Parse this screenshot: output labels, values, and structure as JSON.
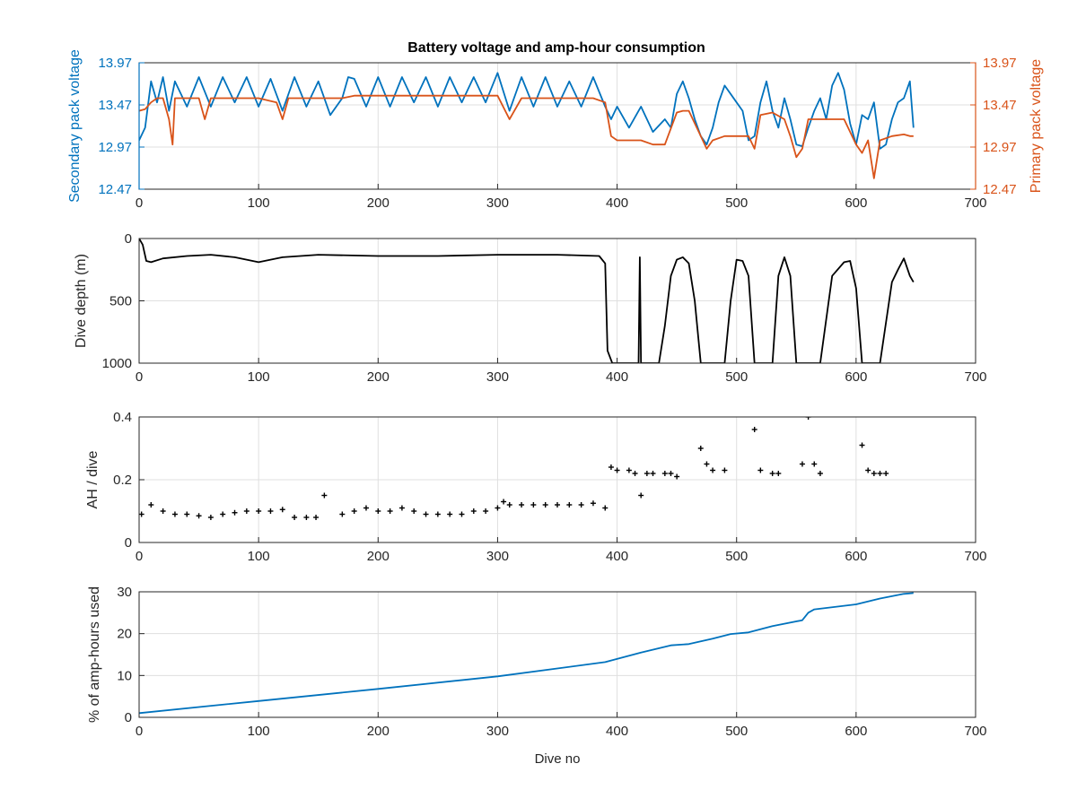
{
  "title": "Battery voltage and amp-hour consumption",
  "colors": {
    "blue": "#0072bd",
    "orange": "#d95319",
    "black": "#000000",
    "axis": "#262626",
    "grid": "#dfdfdf"
  },
  "chart_data": [
    {
      "type": "line",
      "title": "Battery voltage and amp-hour consumption",
      "xlabel": "",
      "ylabel": "Secondary pack voltage",
      "ylabel_right": "Primary pack voltage",
      "xlim": [
        0,
        700
      ],
      "ylim": [
        12.47,
        13.97
      ],
      "ylim_right": [
        12.47,
        13.97
      ],
      "xticks": [
        "0",
        "100",
        "200",
        "300",
        "400",
        "500",
        "600",
        "700"
      ],
      "yticks": [
        "12.47",
        "12.97",
        "13.47",
        "13.97"
      ],
      "yticks_right": [
        "12.47",
        "12.97",
        "13.47",
        "13.97"
      ],
      "grid": true,
      "series": [
        {
          "color": "#0072bd",
          "x": [
            0,
            5,
            10,
            15,
            20,
            25,
            30,
            40,
            50,
            60,
            70,
            80,
            90,
            100,
            110,
            120,
            130,
            140,
            150,
            160,
            170,
            175,
            180,
            190,
            200,
            210,
            220,
            230,
            240,
            250,
            260,
            270,
            280,
            290,
            300,
            310,
            320,
            330,
            340,
            350,
            360,
            370,
            380,
            390,
            395,
            400,
            410,
            420,
            430,
            440,
            445,
            450,
            455,
            460,
            465,
            470,
            475,
            480,
            485,
            490,
            495,
            500,
            505,
            510,
            515,
            520,
            525,
            530,
            535,
            540,
            545,
            550,
            555,
            560,
            565,
            570,
            575,
            580,
            585,
            590,
            595,
            600,
            605,
            610,
            615,
            620,
            625,
            630,
            635,
            640,
            645,
            648
          ],
          "y": [
            13.05,
            13.2,
            13.75,
            13.5,
            13.8,
            13.4,
            13.75,
            13.45,
            13.8,
            13.45,
            13.8,
            13.5,
            13.8,
            13.45,
            13.78,
            13.4,
            13.8,
            13.45,
            13.75,
            13.35,
            13.55,
            13.8,
            13.78,
            13.45,
            13.8,
            13.45,
            13.8,
            13.5,
            13.8,
            13.45,
            13.8,
            13.5,
            13.8,
            13.5,
            13.85,
            13.4,
            13.8,
            13.45,
            13.8,
            13.45,
            13.75,
            13.45,
            13.8,
            13.45,
            13.3,
            13.45,
            13.2,
            13.45,
            13.15,
            13.3,
            13.2,
            13.6,
            13.75,
            13.55,
            13.3,
            13.1,
            13.0,
            13.2,
            13.5,
            13.7,
            13.6,
            13.5,
            13.4,
            13.05,
            13.1,
            13.5,
            13.75,
            13.4,
            13.2,
            13.55,
            13.3,
            13.0,
            12.98,
            13.2,
            13.4,
            13.55,
            13.3,
            13.7,
            13.85,
            13.65,
            13.25,
            13.0,
            13.35,
            13.3,
            13.5,
            12.95,
            13.0,
            13.3,
            13.5,
            13.55,
            13.75,
            13.2
          ]
        },
        {
          "color": "#d95319",
          "axis": "right",
          "x": [
            0,
            5,
            10,
            15,
            20,
            25,
            28,
            30,
            40,
            50,
            55,
            60,
            80,
            100,
            115,
            120,
            125,
            130,
            150,
            170,
            180,
            200,
            220,
            240,
            260,
            280,
            300,
            310,
            320,
            340,
            360,
            380,
            390,
            395,
            400,
            410,
            420,
            430,
            440,
            450,
            455,
            460,
            470,
            475,
            480,
            490,
            500,
            510,
            515,
            520,
            530,
            540,
            545,
            550,
            555,
            560,
            570,
            580,
            590,
            600,
            605,
            610,
            615,
            620,
            630,
            640,
            645,
            648
          ],
          "y": [
            13.4,
            13.42,
            13.5,
            13.55,
            13.55,
            13.3,
            13.0,
            13.55,
            13.55,
            13.55,
            13.3,
            13.55,
            13.55,
            13.55,
            13.5,
            13.3,
            13.55,
            13.55,
            13.55,
            13.55,
            13.58,
            13.58,
            13.58,
            13.58,
            13.58,
            13.58,
            13.58,
            13.3,
            13.55,
            13.55,
            13.55,
            13.55,
            13.5,
            13.1,
            13.05,
            13.05,
            13.05,
            13.0,
            13.0,
            13.38,
            13.4,
            13.4,
            13.1,
            12.95,
            13.05,
            13.1,
            13.1,
            13.1,
            12.95,
            13.35,
            13.38,
            13.3,
            13.1,
            12.85,
            12.95,
            13.3,
            13.3,
            13.3,
            13.3,
            13.0,
            12.9,
            13.05,
            12.6,
            13.05,
            13.1,
            13.12,
            13.1,
            13.1
          ]
        }
      ]
    },
    {
      "type": "line",
      "ylabel": "Dive depth (m)",
      "xlim": [
        0,
        700
      ],
      "ylim": [
        0,
        1000
      ],
      "y_reversed": true,
      "xticks": [
        "0",
        "100",
        "200",
        "300",
        "400",
        "500",
        "600",
        "700"
      ],
      "yticks": [
        "0",
        "500",
        "1000"
      ],
      "grid": true,
      "series": [
        {
          "color": "#000000",
          "x": [
            0,
            3,
            6,
            10,
            20,
            40,
            60,
            80,
            100,
            120,
            150,
            200,
            250,
            300,
            350,
            385,
            390,
            392,
            396,
            400,
            410,
            418,
            419,
            420,
            422,
            430,
            435,
            440,
            445,
            450,
            455,
            460,
            465,
            470,
            475,
            480,
            490,
            495,
            500,
            505,
            510,
            515,
            520,
            530,
            535,
            540,
            545,
            550,
            555,
            560,
            570,
            580,
            590,
            595,
            600,
            605,
            610,
            620,
            630,
            635,
            640,
            645,
            648
          ],
          "y": [
            0,
            50,
            180,
            190,
            160,
            140,
            130,
            150,
            190,
            150,
            130,
            140,
            140,
            130,
            130,
            140,
            200,
            900,
            1000,
            1000,
            1000,
            1000,
            150,
            1000,
            1000,
            1000,
            1000,
            700,
            300,
            170,
            150,
            200,
            500,
            1000,
            1000,
            1000,
            1000,
            500,
            170,
            180,
            300,
            1000,
            1000,
            1000,
            300,
            150,
            300,
            1000,
            1000,
            1000,
            1000,
            300,
            190,
            180,
            400,
            1000,
            1000,
            1000,
            350,
            250,
            160,
            300,
            350
          ]
        }
      ]
    },
    {
      "type": "scatter",
      "ylabel": "AH / dive",
      "xlim": [
        0,
        700
      ],
      "ylim": [
        0,
        0.4
      ],
      "xticks": [
        "0",
        "100",
        "200",
        "300",
        "400",
        "500",
        "600",
        "700"
      ],
      "yticks": [
        "0",
        "0.2",
        "0.4"
      ],
      "grid": true,
      "series": [
        {
          "color": "#000000",
          "x": [
            2,
            10,
            20,
            30,
            40,
            50,
            60,
            70,
            80,
            90,
            100,
            110,
            120,
            130,
            140,
            148,
            155,
            170,
            180,
            190,
            200,
            210,
            220,
            230,
            240,
            250,
            260,
            270,
            280,
            290,
            300,
            305,
            310,
            320,
            330,
            340,
            350,
            360,
            370,
            380,
            390,
            395,
            400,
            410,
            415,
            420,
            425,
            430,
            440,
            445,
            450,
            470,
            475,
            480,
            490,
            515,
            520,
            530,
            535,
            555,
            560,
            565,
            570,
            605,
            610,
            615,
            620,
            625
          ],
          "y": [
            0.09,
            0.12,
            0.1,
            0.09,
            0.09,
            0.085,
            0.08,
            0.09,
            0.095,
            0.1,
            0.1,
            0.1,
            0.105,
            0.08,
            0.08,
            0.08,
            0.15,
            0.09,
            0.1,
            0.11,
            0.1,
            0.1,
            0.11,
            0.1,
            0.09,
            0.09,
            0.09,
            0.09,
            0.1,
            0.1,
            0.11,
            0.13,
            0.12,
            0.12,
            0.12,
            0.12,
            0.12,
            0.12,
            0.12,
            0.125,
            0.11,
            0.24,
            0.23,
            0.23,
            0.22,
            0.15,
            0.22,
            0.22,
            0.22,
            0.22,
            0.21,
            0.3,
            0.25,
            0.23,
            0.23,
            0.36,
            0.23,
            0.22,
            0.22,
            0.25,
            0.4,
            0.25,
            0.22,
            0.31,
            0.23,
            0.22,
            0.22,
            0.22
          ]
        }
      ]
    },
    {
      "type": "line",
      "xlabel": "Dive no",
      "ylabel": "% of amp-hours used",
      "xlim": [
        0,
        700
      ],
      "ylim": [
        0,
        30
      ],
      "xticks": [
        "0",
        "100",
        "200",
        "300",
        "400",
        "500",
        "600",
        "700"
      ],
      "yticks": [
        "0",
        "10",
        "20",
        "30"
      ],
      "grid": true,
      "series": [
        {
          "color": "#0072bd",
          "x": [
            0,
            100,
            200,
            300,
            390,
            420,
            445,
            460,
            480,
            495,
            510,
            530,
            555,
            560,
            565,
            600,
            620,
            640,
            648
          ],
          "y": [
            1.0,
            3.9,
            6.8,
            9.8,
            13.2,
            15.5,
            17.2,
            17.5,
            18.8,
            19.9,
            20.3,
            21.8,
            23.2,
            25.0,
            25.8,
            27.0,
            28.4,
            29.5,
            29.7
          ]
        }
      ]
    }
  ]
}
